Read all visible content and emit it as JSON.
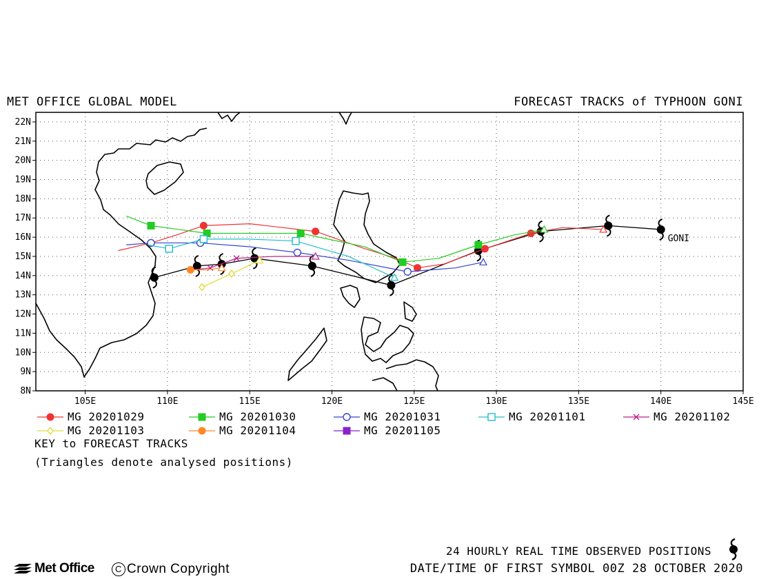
{
  "header": {
    "left": "MET OFFICE GLOBAL MODEL",
    "right": "FORECAST TRACKS of TYPHOON GONI"
  },
  "map": {
    "lon_range": [
      102,
      145
    ],
    "lat_range": [
      8,
      22.5
    ],
    "lon_ticks": [
      "105E",
      "110E",
      "115E",
      "120E",
      "125E",
      "130E",
      "135E",
      "140E",
      "145E"
    ],
    "lat_ticks": [
      "8N",
      "9N",
      "10N",
      "11N",
      "12N",
      "13N",
      "14N",
      "15N",
      "16N",
      "17N",
      "18N",
      "19N",
      "20N",
      "21N",
      "22N"
    ],
    "grid": "dotted",
    "storm_label": "GONI"
  },
  "observed_track": {
    "positions": [
      [
        140.0,
        16.4
      ],
      [
        136.8,
        16.6
      ],
      [
        132.7,
        16.3
      ],
      [
        128.9,
        15.3
      ],
      [
        123.6,
        13.5
      ],
      [
        118.8,
        14.5
      ],
      [
        115.3,
        14.9
      ],
      [
        113.3,
        14.6
      ],
      [
        111.8,
        14.5
      ],
      [
        109.2,
        13.9
      ]
    ]
  },
  "forecast_tracks": [
    {
      "name": "MG 20201029",
      "color": "#ee3333",
      "marker": "filled-circle",
      "points": [
        [
          136.5,
          16.4
        ],
        [
          134.0,
          16.5
        ],
        [
          132.1,
          16.2
        ],
        [
          129.3,
          15.4
        ],
        [
          126.8,
          14.6
        ],
        [
          125.2,
          14.4
        ],
        [
          123.9,
          14.9
        ],
        [
          122.0,
          15.4
        ],
        [
          119.0,
          16.3
        ],
        [
          115.0,
          16.7
        ],
        [
          112.2,
          16.6
        ],
        [
          110.5,
          16.1
        ],
        [
          109.0,
          15.7
        ],
        [
          107.0,
          15.3
        ]
      ],
      "symbols": [
        [
          132.1,
          16.2
        ],
        [
          129.3,
          15.4
        ],
        [
          125.2,
          14.4
        ],
        [
          119.0,
          16.3
        ],
        [
          112.2,
          16.6
        ],
        [
          109.0,
          15.7
        ]
      ]
    },
    {
      "name": "MG 20201030",
      "color": "#22cc22",
      "marker": "filled-square",
      "points": [
        [
          132.9,
          16.4
        ],
        [
          131.0,
          16.1
        ],
        [
          128.9,
          15.6
        ],
        [
          126.5,
          14.9
        ],
        [
          124.3,
          14.7
        ],
        [
          122.0,
          15.5
        ],
        [
          118.1,
          16.2
        ],
        [
          115.0,
          16.2
        ],
        [
          112.4,
          16.2
        ],
        [
          109.0,
          16.6
        ],
        [
          107.5,
          17.1
        ]
      ],
      "symbols": [
        [
          128.9,
          15.6
        ],
        [
          124.3,
          14.7
        ],
        [
          118.1,
          16.2
        ],
        [
          112.4,
          16.2
        ],
        [
          109.0,
          16.6
        ]
      ]
    },
    {
      "name": "MG 20201031",
      "color": "#3344cc",
      "marker": "open-circle",
      "points": [
        [
          129.2,
          14.7
        ],
        [
          127.5,
          14.4
        ],
        [
          124.6,
          14.2
        ],
        [
          121.0,
          14.8
        ],
        [
          117.9,
          15.2
        ],
        [
          115.0,
          15.5
        ],
        [
          112.0,
          15.7
        ],
        [
          109.0,
          15.7
        ],
        [
          107.5,
          15.6
        ]
      ],
      "symbols": [
        [
          124.6,
          14.2
        ],
        [
          117.9,
          15.2
        ],
        [
          112.0,
          15.7
        ],
        [
          109.0,
          15.7
        ]
      ]
    },
    {
      "name": "MG 20201101",
      "color": "#22bbcc",
      "marker": "open-square",
      "points": [
        [
          123.8,
          13.9
        ],
        [
          121.0,
          15.0
        ],
        [
          117.8,
          15.8
        ],
        [
          115.0,
          15.9
        ],
        [
          112.2,
          15.9
        ],
        [
          110.1,
          15.4
        ],
        [
          108.8,
          15.6
        ]
      ],
      "symbols": [
        [
          117.8,
          15.8
        ],
        [
          112.2,
          15.9
        ],
        [
          110.1,
          15.4
        ]
      ]
    },
    {
      "name": "MG 20201102",
      "color": "#bb2288",
      "marker": "cross",
      "points": [
        [
          119.0,
          15.0
        ],
        [
          116.5,
          15.0
        ],
        [
          114.2,
          14.9
        ],
        [
          112.6,
          14.4
        ],
        [
          111.5,
          14.3
        ]
      ],
      "symbols": [
        [
          114.2,
          14.9
        ],
        [
          112.6,
          14.4
        ]
      ]
    },
    {
      "name": "MG 20201103",
      "color": "#dddd33",
      "marker": "open-diamond",
      "points": [
        [
          115.6,
          14.8
        ],
        [
          113.9,
          14.1
        ],
        [
          112.1,
          13.4
        ]
      ],
      "symbols": [
        [
          113.9,
          14.1
        ],
        [
          112.1,
          13.4
        ]
      ]
    },
    {
      "name": "MG 20201104",
      "color": "#ff8822",
      "marker": "filled-circle",
      "points": [
        [
          113.3,
          14.4
        ],
        [
          112.3,
          14.3
        ],
        [
          111.4,
          14.3
        ]
      ],
      "symbols": [
        [
          111.4,
          14.3
        ]
      ]
    },
    {
      "name": "MG 20201105",
      "color": "#8822cc",
      "marker": "filled-square",
      "points": [],
      "symbols": []
    }
  ],
  "key": {
    "title": "KEY to FORECAST TRACKS",
    "note": "(Triangles denote analysed positions)"
  },
  "footer": {
    "observed_label": "24 HOURLY REAL TIME OBSERVED POSITIONS",
    "datetime": "DATE/TIME OF FIRST SYMBOL 00Z 28 OCTOBER 2020",
    "logo_text": "Met Office",
    "copyright": "Crown Copyright",
    "copyright_symbol": "C"
  }
}
